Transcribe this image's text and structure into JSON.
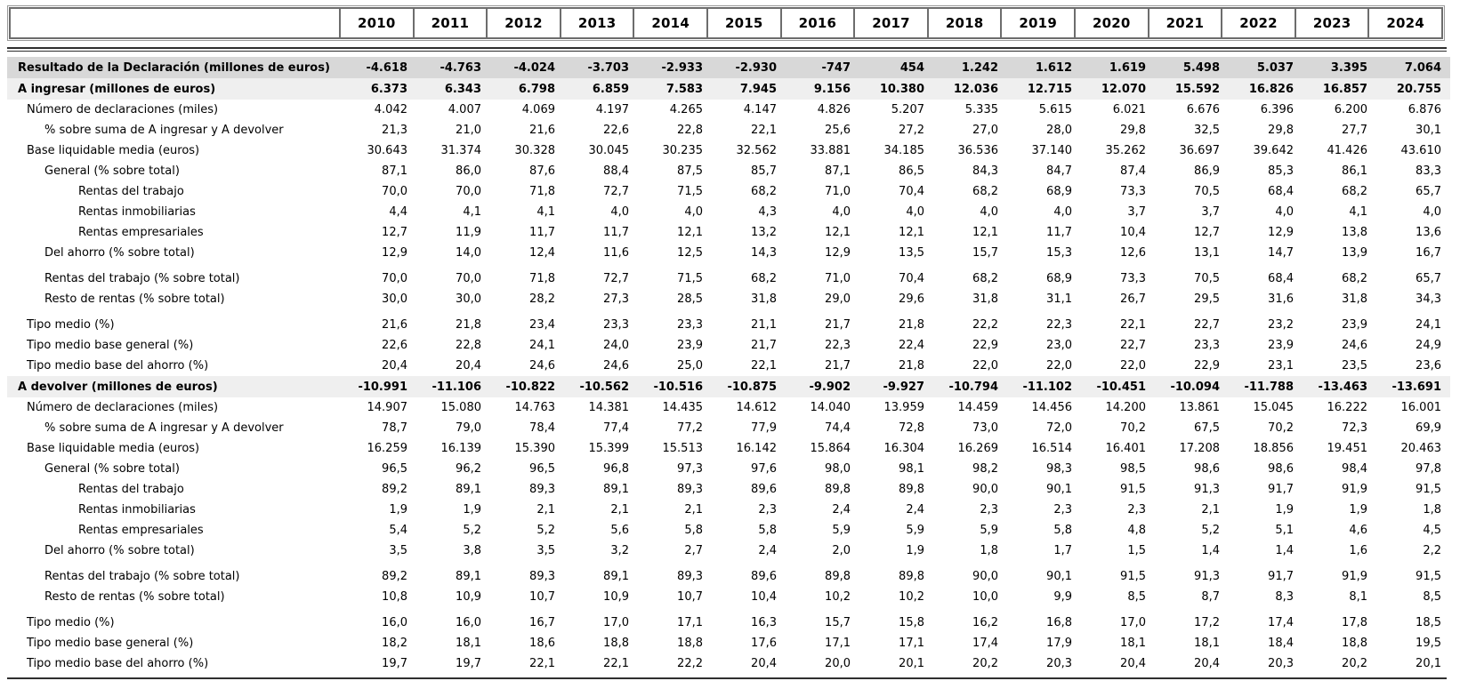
{
  "chart_data": {
    "type": "table",
    "title": "",
    "years": [
      "2010",
      "2011",
      "2012",
      "2013",
      "2014",
      "2015",
      "2016",
      "2017",
      "2018",
      "2019",
      "2020",
      "2021",
      "2022",
      "2023",
      "2024"
    ],
    "rows": [
      {
        "label": "Resultado de la Declaración (millones de euros)",
        "level": 0,
        "style": "dark",
        "gap": false,
        "values": [
          "-4.618",
          "-4.763",
          "-4.024",
          "-3.703",
          "-2.933",
          "-2.930",
          "-747",
          "454",
          "1.242",
          "1.612",
          "1.619",
          "5.498",
          "5.037",
          "3.395",
          "7.064"
        ]
      },
      {
        "label": "A ingresar (millones de euros)",
        "level": 0,
        "style": "light",
        "gap": false,
        "values": [
          "6.373",
          "6.343",
          "6.798",
          "6.859",
          "7.583",
          "7.945",
          "9.156",
          "10.380",
          "12.036",
          "12.715",
          "12.070",
          "15.592",
          "16.826",
          "16.857",
          "20.755"
        ]
      },
      {
        "label": "Número de declaraciones (miles)",
        "level": 1,
        "style": "plain",
        "gap": false,
        "values": [
          "4.042",
          "4.007",
          "4.069",
          "4.197",
          "4.265",
          "4.147",
          "4.826",
          "5.207",
          "5.335",
          "5.615",
          "6.021",
          "6.676",
          "6.396",
          "6.200",
          "6.876"
        ]
      },
      {
        "label": "% sobre suma de A ingresar y A devolver",
        "level": 2,
        "style": "plain",
        "gap": false,
        "values": [
          "21,3",
          "21,0",
          "21,6",
          "22,6",
          "22,8",
          "22,1",
          "25,6",
          "27,2",
          "27,0",
          "28,0",
          "29,8",
          "32,5",
          "29,8",
          "27,7",
          "30,1"
        ]
      },
      {
        "label": "Base liquidable media (euros)",
        "level": 1,
        "style": "plain",
        "gap": false,
        "values": [
          "30.643",
          "31.374",
          "30.328",
          "30.045",
          "30.235",
          "32.562",
          "33.881",
          "34.185",
          "36.536",
          "37.140",
          "35.262",
          "36.697",
          "39.642",
          "41.426",
          "43.610"
        ]
      },
      {
        "label": "General (% sobre total)",
        "level": 2,
        "style": "plain",
        "gap": false,
        "values": [
          "87,1",
          "86,0",
          "87,6",
          "88,4",
          "87,5",
          "85,7",
          "87,1",
          "86,5",
          "84,3",
          "84,7",
          "87,4",
          "86,9",
          "85,3",
          "86,1",
          "83,3"
        ]
      },
      {
        "label": "Rentas del trabajo",
        "level": 3,
        "style": "plain",
        "gap": false,
        "values": [
          "70,0",
          "70,0",
          "71,8",
          "72,7",
          "71,5",
          "68,2",
          "71,0",
          "70,4",
          "68,2",
          "68,9",
          "73,3",
          "70,5",
          "68,4",
          "68,2",
          "65,7"
        ]
      },
      {
        "label": "Rentas inmobiliarias",
        "level": 3,
        "style": "plain",
        "gap": false,
        "values": [
          "4,4",
          "4,1",
          "4,1",
          "4,0",
          "4,0",
          "4,3",
          "4,0",
          "4,0",
          "4,0",
          "4,0",
          "3,7",
          "3,7",
          "4,0",
          "4,1",
          "4,0"
        ]
      },
      {
        "label": "Rentas empresariales",
        "level": 3,
        "style": "plain",
        "gap": false,
        "values": [
          "12,7",
          "11,9",
          "11,7",
          "11,7",
          "12,1",
          "13,2",
          "12,1",
          "12,1",
          "12,1",
          "11,7",
          "10,4",
          "12,7",
          "12,9",
          "13,8",
          "13,6"
        ]
      },
      {
        "label": "Del ahorro (% sobre total)",
        "level": 2,
        "style": "plain",
        "gap": false,
        "values": [
          "12,9",
          "14,0",
          "12,4",
          "11,6",
          "12,5",
          "14,3",
          "12,9",
          "13,5",
          "15,7",
          "15,3",
          "12,6",
          "13,1",
          "14,7",
          "13,9",
          "16,7"
        ]
      },
      {
        "label": "Rentas del trabajo (% sobre total)",
        "level": 2,
        "style": "plain",
        "gap": true,
        "values": [
          "70,0",
          "70,0",
          "71,8",
          "72,7",
          "71,5",
          "68,2",
          "71,0",
          "70,4",
          "68,2",
          "68,9",
          "73,3",
          "70,5",
          "68,4",
          "68,2",
          "65,7"
        ]
      },
      {
        "label": "Resto de rentas (% sobre total)",
        "level": 2,
        "style": "plain",
        "gap": false,
        "values": [
          "30,0",
          "30,0",
          "28,2",
          "27,3",
          "28,5",
          "31,8",
          "29,0",
          "29,6",
          "31,8",
          "31,1",
          "26,7",
          "29,5",
          "31,6",
          "31,8",
          "34,3"
        ]
      },
      {
        "label": "Tipo medio (%)",
        "level": 1,
        "style": "plain",
        "gap": true,
        "values": [
          "21,6",
          "21,8",
          "23,4",
          "23,3",
          "23,3",
          "21,1",
          "21,7",
          "21,8",
          "22,2",
          "22,3",
          "22,1",
          "22,7",
          "23,2",
          "23,9",
          "24,1"
        ]
      },
      {
        "label": "Tipo medio base general (%)",
        "level": 1,
        "style": "plain",
        "gap": false,
        "values": [
          "22,6",
          "22,8",
          "24,1",
          "24,0",
          "23,9",
          "21,7",
          "22,3",
          "22,4",
          "22,9",
          "23,0",
          "22,7",
          "23,3",
          "23,9",
          "24,6",
          "24,9"
        ]
      },
      {
        "label": "Tipo medio base del ahorro (%)",
        "level": 1,
        "style": "plain",
        "gap": false,
        "values": [
          "20,4",
          "20,4",
          "24,6",
          "24,6",
          "25,0",
          "22,1",
          "21,7",
          "21,8",
          "22,0",
          "22,0",
          "22,0",
          "22,9",
          "23,1",
          "23,5",
          "23,6"
        ]
      },
      {
        "label": "A devolver (millones de euros)",
        "level": 0,
        "style": "light",
        "gap": false,
        "values": [
          "-10.991",
          "-11.106",
          "-10.822",
          "-10.562",
          "-10.516",
          "-10.875",
          "-9.902",
          "-9.927",
          "-10.794",
          "-11.102",
          "-10.451",
          "-10.094",
          "-11.788",
          "-13.463",
          "-13.691"
        ]
      },
      {
        "label": "Número de declaraciones (miles)",
        "level": 1,
        "style": "plain",
        "gap": false,
        "values": [
          "14.907",
          "15.080",
          "14.763",
          "14.381",
          "14.435",
          "14.612",
          "14.040",
          "13.959",
          "14.459",
          "14.456",
          "14.200",
          "13.861",
          "15.045",
          "16.222",
          "16.001"
        ]
      },
      {
        "label": "% sobre suma de A ingresar y A devolver",
        "level": 2,
        "style": "plain",
        "gap": false,
        "values": [
          "78,7",
          "79,0",
          "78,4",
          "77,4",
          "77,2",
          "77,9",
          "74,4",
          "72,8",
          "73,0",
          "72,0",
          "70,2",
          "67,5",
          "70,2",
          "72,3",
          "69,9"
        ]
      },
      {
        "label": "Base liquidable media (euros)",
        "level": 1,
        "style": "plain",
        "gap": false,
        "values": [
          "16.259",
          "16.139",
          "15.390",
          "15.399",
          "15.513",
          "16.142",
          "15.864",
          "16.304",
          "16.269",
          "16.514",
          "16.401",
          "17.208",
          "18.856",
          "19.451",
          "20.463"
        ]
      },
      {
        "label": "General (% sobre total)",
        "level": 2,
        "style": "plain",
        "gap": false,
        "values": [
          "96,5",
          "96,2",
          "96,5",
          "96,8",
          "97,3",
          "97,6",
          "98,0",
          "98,1",
          "98,2",
          "98,3",
          "98,5",
          "98,6",
          "98,6",
          "98,4",
          "97,8"
        ]
      },
      {
        "label": "Rentas del trabajo",
        "level": 3,
        "style": "plain",
        "gap": false,
        "values": [
          "89,2",
          "89,1",
          "89,3",
          "89,1",
          "89,3",
          "89,6",
          "89,8",
          "89,8",
          "90,0",
          "90,1",
          "91,5",
          "91,3",
          "91,7",
          "91,9",
          "91,5"
        ]
      },
      {
        "label": "Rentas inmobiliarias",
        "level": 3,
        "style": "plain",
        "gap": false,
        "values": [
          "1,9",
          "1,9",
          "2,1",
          "2,1",
          "2,1",
          "2,3",
          "2,4",
          "2,4",
          "2,3",
          "2,3",
          "2,3",
          "2,1",
          "1,9",
          "1,9",
          "1,8"
        ]
      },
      {
        "label": "Rentas empresariales",
        "level": 3,
        "style": "plain",
        "gap": false,
        "values": [
          "5,4",
          "5,2",
          "5,2",
          "5,6",
          "5,8",
          "5,8",
          "5,9",
          "5,9",
          "5,9",
          "5,8",
          "4,8",
          "5,2",
          "5,1",
          "4,6",
          "4,5"
        ]
      },
      {
        "label": "Del ahorro (% sobre total)",
        "level": 2,
        "style": "plain",
        "gap": false,
        "values": [
          "3,5",
          "3,8",
          "3,5",
          "3,2",
          "2,7",
          "2,4",
          "2,0",
          "1,9",
          "1,8",
          "1,7",
          "1,5",
          "1,4",
          "1,4",
          "1,6",
          "2,2"
        ]
      },
      {
        "label": "Rentas del trabajo (% sobre total)",
        "level": 2,
        "style": "plain",
        "gap": true,
        "values": [
          "89,2",
          "89,1",
          "89,3",
          "89,1",
          "89,3",
          "89,6",
          "89,8",
          "89,8",
          "90,0",
          "90,1",
          "91,5",
          "91,3",
          "91,7",
          "91,9",
          "91,5"
        ]
      },
      {
        "label": "Resto de rentas (% sobre total)",
        "level": 2,
        "style": "plain",
        "gap": false,
        "values": [
          "10,8",
          "10,9",
          "10,7",
          "10,9",
          "10,7",
          "10,4",
          "10,2",
          "10,2",
          "10,0",
          "9,9",
          "8,5",
          "8,7",
          "8,3",
          "8,1",
          "8,5"
        ]
      },
      {
        "label": "Tipo medio (%)",
        "level": 1,
        "style": "plain",
        "gap": true,
        "values": [
          "16,0",
          "16,0",
          "16,7",
          "17,0",
          "17,1",
          "16,3",
          "15,7",
          "15,8",
          "16,2",
          "16,8",
          "17,0",
          "17,2",
          "17,4",
          "17,8",
          "18,5"
        ]
      },
      {
        "label": "Tipo medio base general (%)",
        "level": 1,
        "style": "plain",
        "gap": false,
        "values": [
          "18,2",
          "18,1",
          "18,6",
          "18,8",
          "18,8",
          "17,6",
          "17,1",
          "17,1",
          "17,4",
          "17,9",
          "18,1",
          "18,1",
          "18,4",
          "18,8",
          "19,5"
        ]
      },
      {
        "label": "Tipo medio base del ahorro (%)",
        "level": 1,
        "style": "plain",
        "gap": false,
        "values": [
          "19,7",
          "19,7",
          "22,1",
          "22,1",
          "22,2",
          "20,4",
          "20,0",
          "20,1",
          "20,2",
          "20,3",
          "20,4",
          "20,4",
          "20,3",
          "20,2",
          "20,1"
        ]
      }
    ],
    "layout": {
      "legend": "none",
      "grid": "off",
      "header_boxed": true,
      "double_rule_under_header": true,
      "bottom_rule": true
    },
    "colors": {
      "row_dark": "#d8d8d8",
      "row_light": "#efefef",
      "rule": "#2f2f2f",
      "header_border": "#6d6d6d",
      "text": "#000000"
    }
  }
}
